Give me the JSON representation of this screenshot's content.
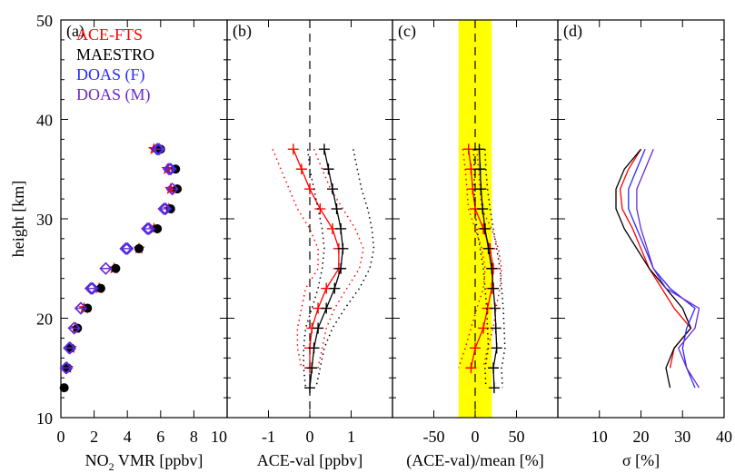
{
  "colors": {
    "ace": "#ff0000",
    "maestro": "#000000",
    "doas_f": "#2a2aff",
    "doas_m": "#6a2ad0",
    "band": "#ffff00"
  },
  "ylabel": "height [km]",
  "yticks": [
    "10",
    "20",
    "30",
    "40",
    "50"
  ],
  "ylim": [
    10,
    50
  ],
  "chart_data": [
    {
      "type": "scatter",
      "panel": "(a)",
      "xlabel": {
        "prefix": "NO",
        "sub": "2",
        "suffix": " VMR [ppbv]"
      },
      "xlim": [
        0,
        10
      ],
      "xticks": [
        0,
        2,
        4,
        6,
        8,
        10
      ],
      "xtick_labels": [
        "0",
        "2",
        "4",
        "6",
        "8",
        "10"
      ],
      "legend": [
        "ACE-FTS",
        "MAESTRO",
        "DOAS (F)",
        "DOAS (M)"
      ],
      "series": [
        {
          "name": "ACE-FTS",
          "marker": "star",
          "color": "#ff0000",
          "points": [
            [
              5.6,
              37
            ],
            [
              6.4,
              35
            ],
            [
              6.6,
              33
            ],
            [
              6.5,
              31
            ],
            [
              5.6,
              29
            ],
            [
              4.7,
              27
            ],
            [
              3.2,
              25
            ],
            [
              2.3,
              23
            ],
            [
              1.4,
              21
            ],
            [
              0.9,
              19
            ],
            [
              0.6,
              17
            ],
            [
              0.4,
              15
            ]
          ]
        },
        {
          "name": "MAESTRO",
          "marker": "circle",
          "color": "#000000",
          "points": [
            [
              6.0,
              37
            ],
            [
              6.9,
              35
            ],
            [
              7.0,
              33
            ],
            [
              6.6,
              31
            ],
            [
              5.8,
              29
            ],
            [
              4.7,
              27
            ],
            [
              3.3,
              25
            ],
            [
              2.4,
              23
            ],
            [
              1.6,
              21
            ],
            [
              1.0,
              19
            ],
            [
              0.6,
              17
            ],
            [
              0.4,
              15
            ],
            [
              0.2,
              13
            ]
          ]
        },
        {
          "name": "DOAS (F)",
          "marker": "diamond",
          "color": "#2a2aff",
          "points": [
            [
              5.8,
              37
            ],
            [
              6.6,
              35
            ],
            [
              6.7,
              33
            ],
            [
              6.3,
              31
            ],
            [
              5.3,
              29
            ],
            [
              4.0,
              27
            ],
            [
              2.7,
              25
            ],
            [
              1.9,
              23
            ],
            [
              1.2,
              21
            ],
            [
              0.8,
              19
            ],
            [
              0.55,
              17
            ],
            [
              0.35,
              15
            ]
          ]
        },
        {
          "name": "DOAS (M)",
          "marker": "diamond",
          "color": "#6a2ad0",
          "points": [
            [
              5.9,
              37
            ],
            [
              6.5,
              35
            ],
            [
              6.7,
              33
            ],
            [
              6.2,
              31
            ],
            [
              5.2,
              29
            ],
            [
              3.9,
              27
            ],
            [
              2.7,
              25
            ],
            [
              1.8,
              23
            ],
            [
              1.2,
              21
            ],
            [
              0.8,
              19
            ],
            [
              0.5,
              17
            ],
            [
              0.3,
              15
            ]
          ]
        }
      ]
    },
    {
      "type": "line",
      "panel": "(b)",
      "xlabel": "ACE-val [ppbv]",
      "xlim": [
        -2,
        2
      ],
      "xticks": [
        -1,
        0,
        1
      ],
      "xtick_labels": [
        "-1",
        "0",
        "1"
      ],
      "zero_line": 0,
      "series": [
        {
          "name": "ACE-FTS",
          "color": "#ff0000",
          "points": [
            [
              -0.4,
              37
            ],
            [
              -0.2,
              35
            ],
            [
              0.0,
              33
            ],
            [
              0.25,
              31
            ],
            [
              0.55,
              29
            ],
            [
              0.7,
              27
            ],
            [
              0.7,
              25
            ],
            [
              0.4,
              23
            ],
            [
              0.2,
              21
            ],
            [
              0.05,
              19
            ],
            [
              0.0,
              17
            ],
            [
              0.0,
              15
            ]
          ],
          "err": [
            [
              -0.9,
              0.1
            ],
            [
              -0.7,
              0.3
            ],
            [
              -0.5,
              0.5
            ],
            [
              -0.3,
              0.8
            ],
            [
              0.0,
              1.1
            ],
            [
              0.2,
              1.3
            ],
            [
              0.2,
              1.2
            ],
            [
              -0.1,
              0.9
            ],
            [
              -0.2,
              0.6
            ],
            [
              -0.3,
              0.4
            ],
            [
              -0.3,
              0.3
            ],
            [
              -0.2,
              0.2
            ]
          ]
        },
        {
          "name": "MAESTRO",
          "color": "#000000",
          "points": [
            [
              0.35,
              37
            ],
            [
              0.45,
              35
            ],
            [
              0.55,
              33
            ],
            [
              0.65,
              31
            ],
            [
              0.75,
              29
            ],
            [
              0.8,
              27
            ],
            [
              0.75,
              25
            ],
            [
              0.6,
              23
            ],
            [
              0.4,
              21
            ],
            [
              0.2,
              19
            ],
            [
              0.1,
              17
            ],
            [
              0.05,
              15
            ],
            [
              0.0,
              13
            ]
          ],
          "err": [
            [
              -0.05,
              1.05
            ],
            [
              0.0,
              1.15
            ],
            [
              0.1,
              1.25
            ],
            [
              0.2,
              1.4
            ],
            [
              0.3,
              1.5
            ],
            [
              0.35,
              1.55
            ],
            [
              0.3,
              1.45
            ],
            [
              0.2,
              1.2
            ],
            [
              0.05,
              0.85
            ],
            [
              -0.1,
              0.55
            ],
            [
              -0.15,
              0.35
            ],
            [
              -0.15,
              0.25
            ],
            [
              -0.1,
              0.15
            ]
          ]
        }
      ]
    },
    {
      "type": "line",
      "panel": "(c)",
      "xlabel": "(ACE-val)/mean [%]",
      "xlim": [
        -100,
        100
      ],
      "xticks": [
        -50,
        0,
        50
      ],
      "xtick_labels": [
        "-50",
        "0",
        "50"
      ],
      "zero_line": 0,
      "band": [
        -20,
        20
      ],
      "series": [
        {
          "name": "ACE-FTS",
          "color": "#ff0000",
          "points": [
            [
              -8,
              37
            ],
            [
              -5,
              35
            ],
            [
              -3,
              33
            ],
            [
              0,
              31
            ],
            [
              10,
              29
            ],
            [
              18,
              27
            ],
            [
              22,
              25
            ],
            [
              20,
              23
            ],
            [
              15,
              21
            ],
            [
              10,
              19
            ],
            [
              0,
              17
            ],
            [
              -5,
              15
            ]
          ],
          "err": [
            [
              -15,
              2
            ],
            [
              -12,
              4
            ],
            [
              -10,
              6
            ],
            [
              -8,
              8
            ],
            [
              0,
              20
            ],
            [
              8,
              28
            ],
            [
              12,
              32
            ],
            [
              10,
              30
            ],
            [
              2,
              25
            ],
            [
              -5,
              22
            ],
            [
              -12,
              15
            ],
            [
              -20,
              10
            ]
          ]
        },
        {
          "name": "MAESTRO",
          "color": "#000000",
          "points": [
            [
              5,
              37
            ],
            [
              6,
              35
            ],
            [
              7,
              33
            ],
            [
              9,
              31
            ],
            [
              12,
              29
            ],
            [
              16,
              27
            ],
            [
              20,
              25
            ],
            [
              22,
              23
            ],
            [
              24,
              21
            ],
            [
              25,
              19
            ],
            [
              26,
              17
            ],
            [
              22,
              15
            ],
            [
              23,
              13
            ]
          ],
          "err": [
            [
              -2,
              12
            ],
            [
              -1,
              13
            ],
            [
              -1,
              15
            ],
            [
              0,
              18
            ],
            [
              2,
              22
            ],
            [
              6,
              26
            ],
            [
              10,
              30
            ],
            [
              12,
              32
            ],
            [
              14,
              34
            ],
            [
              15,
              35
            ],
            [
              16,
              36
            ],
            [
              12,
              32
            ],
            [
              13,
              33
            ]
          ]
        }
      ]
    },
    {
      "type": "line",
      "panel": "(d)",
      "xlabel": {
        "sym": "σ",
        "suffix": " [%]"
      },
      "xlim": [
        0,
        40
      ],
      "xticks": [
        10,
        20,
        30,
        40
      ],
      "xtick_labels": [
        "10",
        "20",
        "30",
        "40"
      ],
      "series": [
        {
          "name": "ACE-FTS",
          "color": "#ff0000",
          "points": [
            [
              20,
              37
            ],
            [
              17,
              35
            ],
            [
              15,
              33
            ],
            [
              15.5,
              31
            ],
            [
              18,
              29
            ],
            [
              20,
              27
            ],
            [
              22,
              25
            ],
            [
              25,
              23
            ],
            [
              28,
              21
            ],
            [
              32,
              19
            ],
            [
              28,
              17
            ],
            [
              27,
              15
            ]
          ]
        },
        {
          "name": "MAESTRO",
          "color": "#000000",
          "points": [
            [
              20,
              37
            ],
            [
              16,
              35
            ],
            [
              14,
              33
            ],
            [
              14,
              31
            ],
            [
              16,
              29
            ],
            [
              19,
              27
            ],
            [
              22,
              25
            ],
            [
              26,
              23
            ],
            [
              30,
              21
            ],
            [
              32,
              19
            ],
            [
              28,
              17
            ],
            [
              26,
              15
            ],
            [
              27,
              13
            ]
          ]
        },
        {
          "name": "DOAS (F)",
          "color": "#2a2aff",
          "points": [
            [
              21,
              37
            ],
            [
              19,
              35
            ],
            [
              17,
              33
            ],
            [
              17,
              31
            ],
            [
              19,
              29
            ],
            [
              21,
              27
            ],
            [
              23,
              25
            ],
            [
              27,
              23
            ],
            [
              33,
              21
            ],
            [
              31,
              19
            ],
            [
              30,
              17
            ],
            [
              31,
              15
            ],
            [
              33,
              13
            ]
          ]
        },
        {
          "name": "DOAS (M)",
          "color": "#6a2ad0",
          "points": [
            [
              23,
              37
            ],
            [
              21,
              35
            ],
            [
              19,
              33
            ],
            [
              19,
              31
            ],
            [
              20,
              29
            ],
            [
              21.5,
              27
            ],
            [
              23,
              25
            ],
            [
              26,
              23
            ],
            [
              34,
              21
            ],
            [
              33,
              19
            ],
            [
              29,
              17
            ],
            [
              31,
              15
            ],
            [
              34,
              13
            ]
          ]
        }
      ]
    }
  ]
}
